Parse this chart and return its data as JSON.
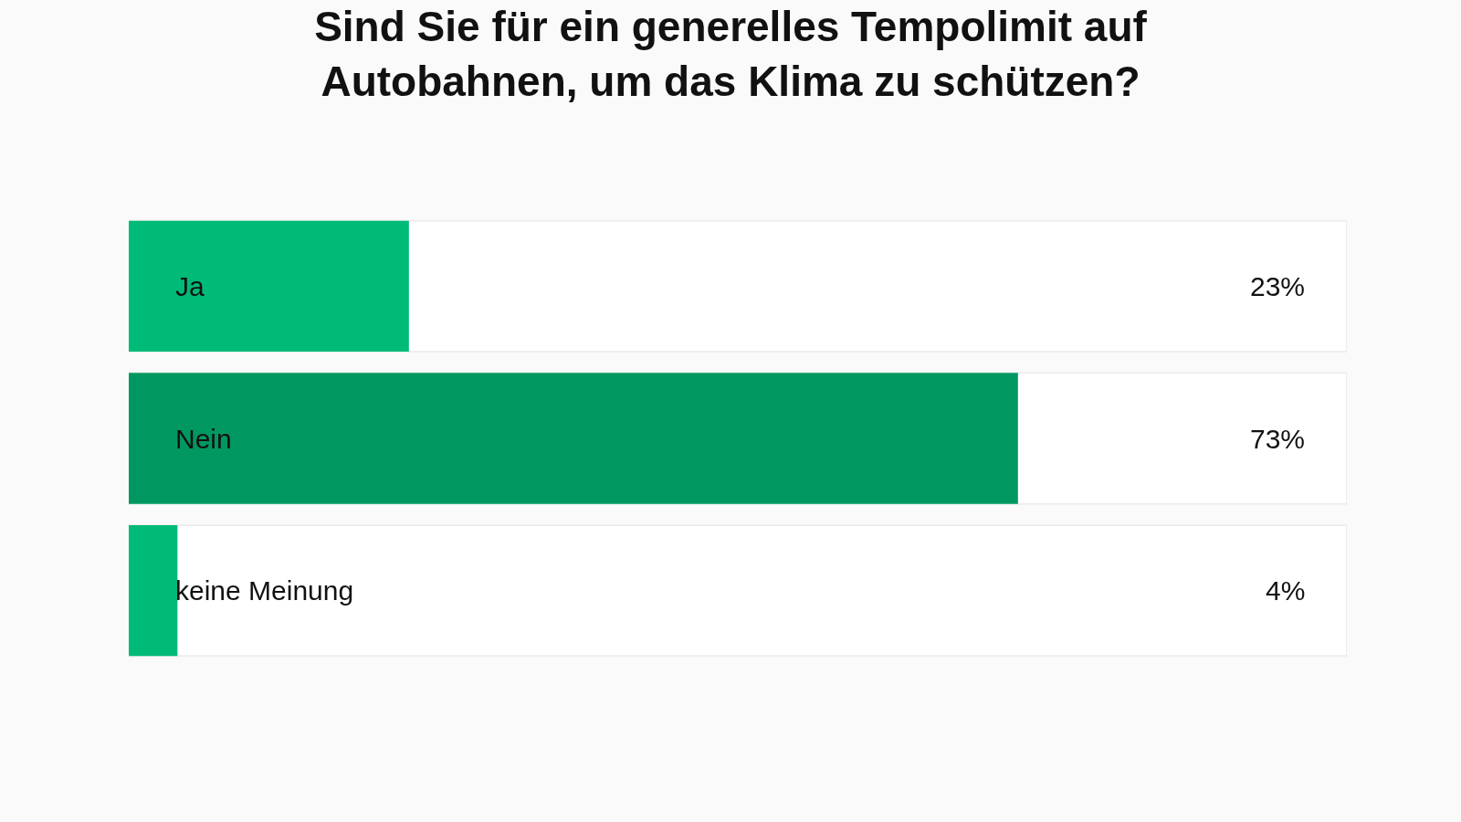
{
  "chart_data": {
    "type": "bar",
    "orientation": "horizontal",
    "title": "Sind Sie für ein generelles Tempolimit auf Autobahnen, um das Klima zu schützen?",
    "categories": [
      "Ja",
      "Nein",
      "keine Meinung"
    ],
    "values": [
      23,
      73,
      4
    ],
    "colors": [
      "#00bb77",
      "#009860",
      "#00bb77"
    ],
    "value_labels": [
      "23%",
      "73%",
      "4%"
    ],
    "xlim": [
      0,
      100
    ],
    "tick_labels": "y",
    "grid": false,
    "legend": false
  }
}
